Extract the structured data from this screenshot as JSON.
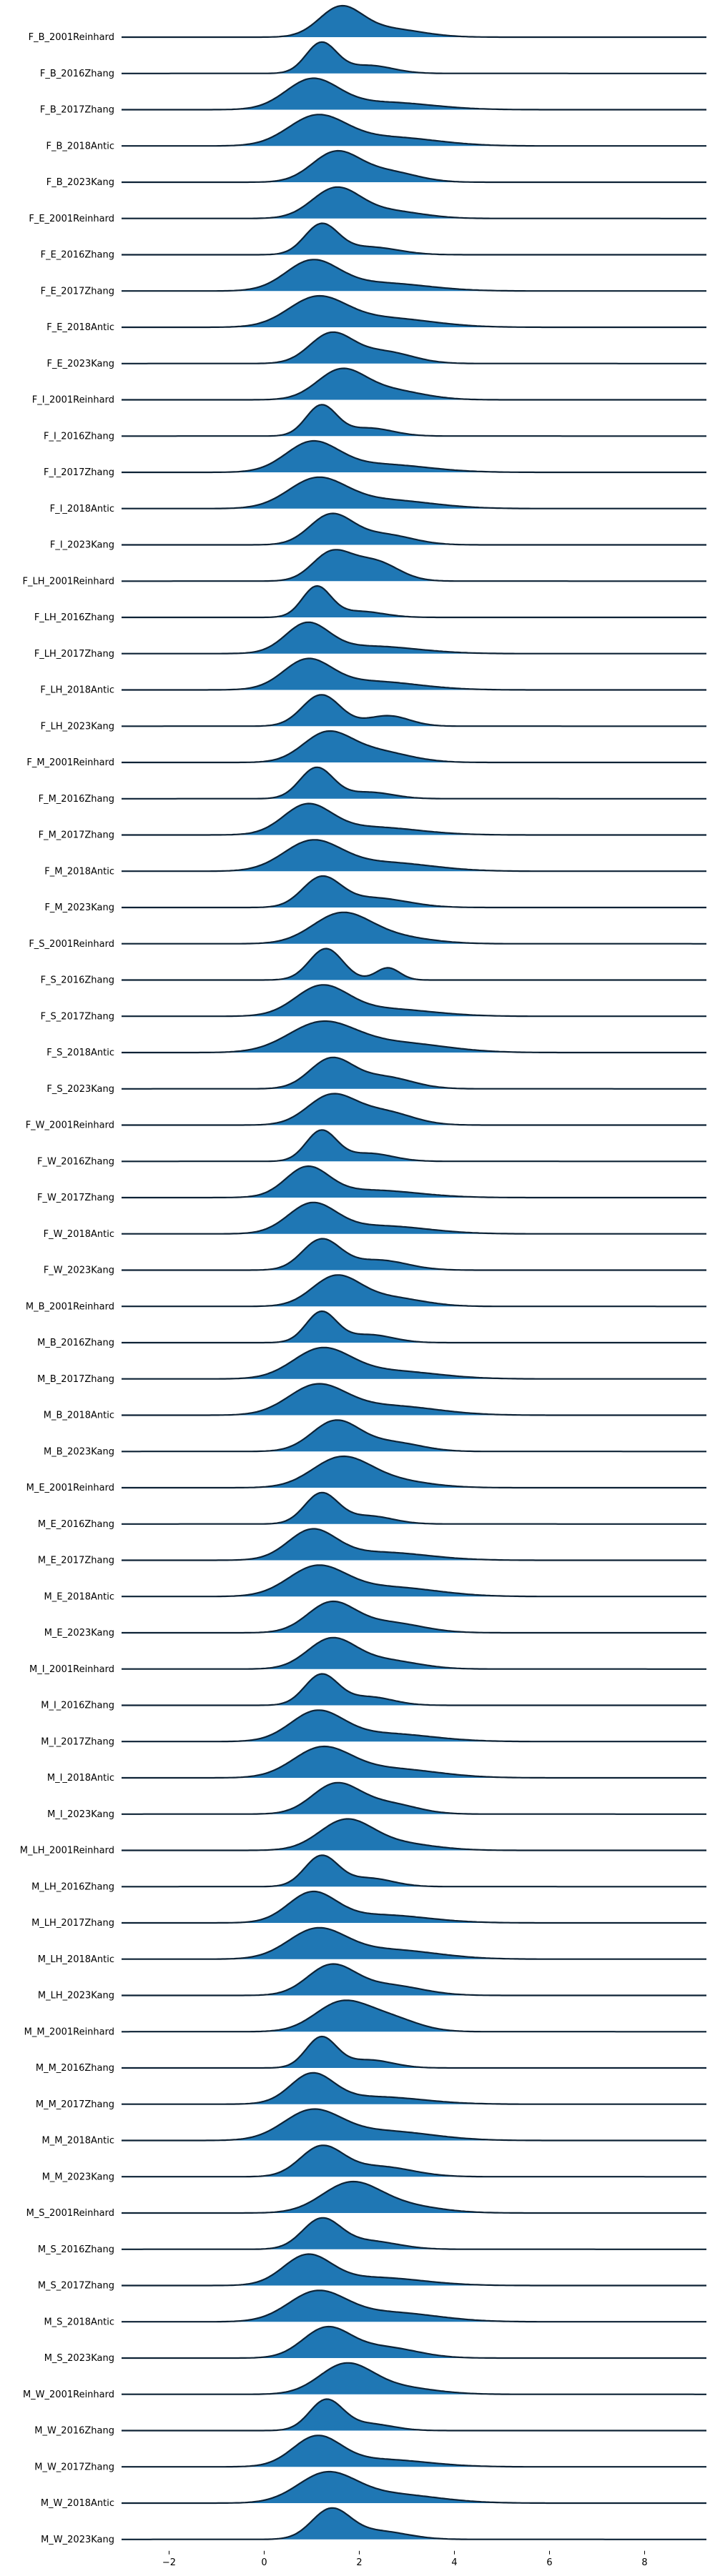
{
  "chart_data": {
    "type": "area",
    "subtype": "ridgeline",
    "title": "",
    "xlabel": "",
    "ylabel": "",
    "xlim": [
      -3.0,
      9.3
    ],
    "xticks": [
      -2,
      0,
      2,
      4,
      6,
      8
    ],
    "xtick_labels": [
      "−2",
      "0",
      "2",
      "4",
      "6",
      "8"
    ],
    "fill_color": "#1f77b4",
    "line_color": "#0d2235",
    "legend": "none",
    "grid": false,
    "series": [
      {
        "label": "F_B_2001Reinhard",
        "peaks": [
          [
            1.6,
            0.45,
            0.85
          ],
          [
            2.6,
            0.7,
            0.25
          ]
        ]
      },
      {
        "label": "F_B_2016Zhang",
        "peaks": [
          [
            1.2,
            0.32,
            0.95
          ],
          [
            2.2,
            0.5,
            0.25
          ]
        ]
      },
      {
        "label": "F_B_2017Zhang",
        "peaks": [
          [
            1.0,
            0.55,
            0.7
          ],
          [
            2.5,
            1.0,
            0.18
          ]
        ]
      },
      {
        "label": "F_B_2018Antic",
        "peaks": [
          [
            1.1,
            0.6,
            0.65
          ],
          [
            2.6,
            1.0,
            0.2
          ]
        ]
      },
      {
        "label": "F_B_2023Kang",
        "peaks": [
          [
            1.5,
            0.5,
            0.85
          ],
          [
            2.6,
            0.6,
            0.3
          ]
        ]
      },
      {
        "label": "F_E_2001Reinhard",
        "peaks": [
          [
            1.5,
            0.5,
            0.85
          ],
          [
            2.6,
            0.7,
            0.22
          ]
        ]
      },
      {
        "label": "F_E_2016Zhang",
        "peaks": [
          [
            1.2,
            0.35,
            0.95
          ],
          [
            2.2,
            0.6,
            0.25
          ]
        ]
      },
      {
        "label": "F_E_2017Zhang",
        "peaks": [
          [
            1.0,
            0.55,
            0.7
          ],
          [
            2.4,
            1.0,
            0.2
          ]
        ]
      },
      {
        "label": "F_E_2018Antic",
        "peaks": [
          [
            1.1,
            0.6,
            0.6
          ],
          [
            2.5,
            1.0,
            0.2
          ]
        ]
      },
      {
        "label": "F_E_2023Kang",
        "peaks": [
          [
            1.4,
            0.45,
            0.85
          ],
          [
            2.5,
            0.6,
            0.35
          ]
        ]
      },
      {
        "label": "F_I_2001Reinhard",
        "peaks": [
          [
            1.6,
            0.5,
            0.85
          ],
          [
            2.6,
            0.7,
            0.3
          ]
        ]
      },
      {
        "label": "F_I_2016Zhang",
        "peaks": [
          [
            1.2,
            0.32,
            0.95
          ],
          [
            2.2,
            0.5,
            0.25
          ]
        ]
      },
      {
        "label": "F_I_2017Zhang",
        "peaks": [
          [
            1.0,
            0.55,
            0.7
          ],
          [
            2.4,
            1.0,
            0.2
          ]
        ]
      },
      {
        "label": "F_I_2018Antic",
        "peaks": [
          [
            1.1,
            0.6,
            0.65
          ],
          [
            2.5,
            1.0,
            0.2
          ]
        ]
      },
      {
        "label": "F_I_2023Kang",
        "peaks": [
          [
            1.4,
            0.45,
            0.85
          ],
          [
            2.5,
            0.6,
            0.3
          ]
        ]
      },
      {
        "label": "F_LH_2001Reinhard",
        "peaks": [
          [
            1.4,
            0.4,
            0.8
          ],
          [
            2.3,
            0.5,
            0.6
          ]
        ]
      },
      {
        "label": "F_LH_2016Zhang",
        "peaks": [
          [
            1.1,
            0.3,
            1.0
          ],
          [
            2.0,
            0.5,
            0.2
          ]
        ]
      },
      {
        "label": "F_LH_2017Zhang",
        "peaks": [
          [
            0.9,
            0.45,
            0.75
          ],
          [
            2.2,
            1.0,
            0.2
          ]
        ]
      },
      {
        "label": "F_LH_2018Antic",
        "peaks": [
          [
            0.9,
            0.5,
            0.7
          ],
          [
            2.2,
            1.0,
            0.22
          ]
        ]
      },
      {
        "label": "F_LH_2023Kang",
        "peaks": [
          [
            1.2,
            0.4,
            0.9
          ],
          [
            2.6,
            0.45,
            0.3
          ]
        ]
      },
      {
        "label": "F_M_2001Reinhard",
        "peaks": [
          [
            1.3,
            0.5,
            0.7
          ],
          [
            2.3,
            0.7,
            0.3
          ]
        ]
      },
      {
        "label": "F_M_2016Zhang",
        "peaks": [
          [
            1.1,
            0.35,
            0.95
          ],
          [
            2.2,
            0.5,
            0.2
          ]
        ]
      },
      {
        "label": "F_M_2017Zhang",
        "peaks": [
          [
            0.9,
            0.5,
            0.7
          ],
          [
            2.2,
            1.0,
            0.2
          ]
        ]
      },
      {
        "label": "F_M_2018Antic",
        "peaks": [
          [
            1.0,
            0.6,
            0.65
          ],
          [
            2.5,
            1.0,
            0.2
          ]
        ]
      },
      {
        "label": "F_M_2023Kang",
        "peaks": [
          [
            1.2,
            0.4,
            0.9
          ],
          [
            2.3,
            0.7,
            0.3
          ]
        ]
      },
      {
        "label": "F_S_2001Reinhard",
        "peaks": [
          [
            1.6,
            0.6,
            0.75
          ],
          [
            2.6,
            0.8,
            0.2
          ]
        ]
      },
      {
        "label": "F_S_2016Zhang",
        "peaks": [
          [
            1.3,
            0.35,
            0.9
          ],
          [
            2.6,
            0.25,
            0.35
          ]
        ]
      },
      {
        "label": "F_S_2017Zhang",
        "peaks": [
          [
            1.2,
            0.55,
            0.75
          ],
          [
            2.5,
            1.0,
            0.2
          ]
        ]
      },
      {
        "label": "F_S_2018Antic",
        "peaks": [
          [
            1.2,
            0.7,
            0.6
          ],
          [
            2.8,
            1.0,
            0.2
          ]
        ]
      },
      {
        "label": "F_S_2023Kang",
        "peaks": [
          [
            1.4,
            0.45,
            0.85
          ],
          [
            2.5,
            0.6,
            0.35
          ]
        ]
      },
      {
        "label": "F_W_2001Reinhard",
        "peaks": [
          [
            1.4,
            0.5,
            0.75
          ],
          [
            2.5,
            0.6,
            0.35
          ]
        ]
      },
      {
        "label": "F_W_2016Zhang",
        "peaks": [
          [
            1.2,
            0.32,
            0.95
          ],
          [
            2.2,
            0.5,
            0.25
          ]
        ]
      },
      {
        "label": "F_W_2017Zhang",
        "peaks": [
          [
            0.9,
            0.45,
            0.75
          ],
          [
            2.2,
            1.0,
            0.2
          ]
        ]
      },
      {
        "label": "F_W_2018Antic",
        "peaks": [
          [
            1.0,
            0.5,
            0.7
          ],
          [
            2.4,
            1.0,
            0.2
          ]
        ]
      },
      {
        "label": "F_W_2023Kang",
        "peaks": [
          [
            1.2,
            0.4,
            0.9
          ],
          [
            2.4,
            0.6,
            0.3
          ]
        ]
      },
      {
        "label": "M_B_2001Reinhard",
        "peaks": [
          [
            1.5,
            0.5,
            0.8
          ],
          [
            2.6,
            0.7,
            0.25
          ]
        ]
      },
      {
        "label": "M_B_2016Zhang",
        "peaks": [
          [
            1.2,
            0.32,
            0.95
          ],
          [
            2.2,
            0.5,
            0.25
          ]
        ]
      },
      {
        "label": "M_B_2017Zhang",
        "peaks": [
          [
            1.2,
            0.6,
            0.7
          ],
          [
            2.6,
            1.0,
            0.2
          ]
        ]
      },
      {
        "label": "M_B_2018Antic",
        "peaks": [
          [
            1.1,
            0.6,
            0.6
          ],
          [
            2.6,
            1.0,
            0.2
          ]
        ]
      },
      {
        "label": "M_B_2023Kang",
        "peaks": [
          [
            1.5,
            0.5,
            0.85
          ],
          [
            2.7,
            0.6,
            0.25
          ]
        ]
      },
      {
        "label": "M_E_2001Reinhard",
        "peaks": [
          [
            1.6,
            0.6,
            0.75
          ],
          [
            2.6,
            0.8,
            0.2
          ]
        ]
      },
      {
        "label": "M_E_2016Zhang",
        "peaks": [
          [
            1.2,
            0.35,
            0.95
          ],
          [
            2.2,
            0.5,
            0.25
          ]
        ]
      },
      {
        "label": "M_E_2017Zhang",
        "peaks": [
          [
            1.0,
            0.5,
            0.7
          ],
          [
            2.4,
            1.0,
            0.2
          ]
        ]
      },
      {
        "label": "M_E_2018Antic",
        "peaks": [
          [
            1.1,
            0.6,
            0.6
          ],
          [
            2.6,
            1.0,
            0.2
          ]
        ]
      },
      {
        "label": "M_E_2023Kang",
        "peaks": [
          [
            1.4,
            0.5,
            0.85
          ],
          [
            2.6,
            0.7,
            0.3
          ]
        ]
      },
      {
        "label": "M_I_2001Reinhard",
        "peaks": [
          [
            1.4,
            0.5,
            0.8
          ],
          [
            2.5,
            0.7,
            0.25
          ]
        ]
      },
      {
        "label": "M_I_2016Zhang",
        "peaks": [
          [
            1.2,
            0.35,
            0.9
          ],
          [
            2.2,
            0.5,
            0.25
          ]
        ]
      },
      {
        "label": "M_I_2017Zhang",
        "peaks": [
          [
            1.1,
            0.55,
            0.7
          ],
          [
            2.5,
            1.0,
            0.2
          ]
        ]
      },
      {
        "label": "M_I_2018Antic",
        "peaks": [
          [
            1.2,
            0.6,
            0.6
          ],
          [
            2.6,
            1.0,
            0.2
          ]
        ]
      },
      {
        "label": "M_I_2023Kang",
        "peaks": [
          [
            1.5,
            0.5,
            0.85
          ],
          [
            2.6,
            0.6,
            0.3
          ]
        ]
      },
      {
        "label": "M_LH_2001Reinhard",
        "peaks": [
          [
            1.7,
            0.55,
            0.75
          ],
          [
            2.7,
            0.8,
            0.2
          ]
        ]
      },
      {
        "label": "M_LH_2016Zhang",
        "peaks": [
          [
            1.2,
            0.35,
            0.9
          ],
          [
            2.2,
            0.5,
            0.25
          ]
        ]
      },
      {
        "label": "M_LH_2017Zhang",
        "peaks": [
          [
            1.0,
            0.5,
            0.7
          ],
          [
            2.4,
            1.0,
            0.2
          ]
        ]
      },
      {
        "label": "M_LH_2018Antic",
        "peaks": [
          [
            1.1,
            0.6,
            0.6
          ],
          [
            2.6,
            1.0,
            0.2
          ]
        ]
      },
      {
        "label": "M_LH_2023Kang",
        "peaks": [
          [
            1.4,
            0.5,
            0.85
          ],
          [
            2.6,
            0.7,
            0.3
          ]
        ]
      },
      {
        "label": "M_M_2001Reinhard",
        "peaks": [
          [
            1.6,
            0.55,
            0.7
          ],
          [
            2.6,
            0.6,
            0.35
          ]
        ]
      },
      {
        "label": "M_M_2016Zhang",
        "peaks": [
          [
            1.2,
            0.32,
            0.95
          ],
          [
            2.2,
            0.5,
            0.25
          ]
        ]
      },
      {
        "label": "M_M_2017Zhang",
        "peaks": [
          [
            1.0,
            0.45,
            0.75
          ],
          [
            2.3,
            1.0,
            0.2
          ]
        ]
      },
      {
        "label": "M_M_2018Antic",
        "peaks": [
          [
            1.0,
            0.6,
            0.6
          ],
          [
            2.5,
            1.0,
            0.2
          ]
        ]
      },
      {
        "label": "M_M_2023Kang",
        "peaks": [
          [
            1.2,
            0.45,
            0.85
          ],
          [
            2.4,
            0.7,
            0.3
          ]
        ]
      },
      {
        "label": "M_S_2001Reinhard",
        "peaks": [
          [
            1.8,
            0.6,
            0.7
          ],
          [
            2.8,
            0.8,
            0.2
          ]
        ]
      },
      {
        "label": "M_S_2016Zhang",
        "peaks": [
          [
            1.2,
            0.4,
            0.9
          ],
          [
            2.2,
            0.6,
            0.25
          ]
        ]
      },
      {
        "label": "M_S_2017Zhang",
        "peaks": [
          [
            0.9,
            0.5,
            0.7
          ],
          [
            2.3,
            1.0,
            0.2
          ]
        ]
      },
      {
        "label": "M_S_2018Antic",
        "peaks": [
          [
            1.1,
            0.6,
            0.6
          ],
          [
            2.6,
            1.0,
            0.2
          ]
        ]
      },
      {
        "label": "M_S_2023Kang",
        "peaks": [
          [
            1.3,
            0.5,
            0.8
          ],
          [
            2.5,
            0.7,
            0.3
          ]
        ]
      },
      {
        "label": "M_W_2001Reinhard",
        "peaks": [
          [
            1.7,
            0.55,
            0.75
          ],
          [
            2.7,
            0.8,
            0.2
          ]
        ]
      },
      {
        "label": "M_W_2016Zhang",
        "peaks": [
          [
            1.3,
            0.35,
            0.9
          ],
          [
            2.2,
            0.5,
            0.2
          ]
        ]
      },
      {
        "label": "M_W_2017Zhang",
        "peaks": [
          [
            1.1,
            0.5,
            0.75
          ],
          [
            2.4,
            1.0,
            0.2
          ]
        ]
      },
      {
        "label": "M_W_2018Antic",
        "peaks": [
          [
            1.3,
            0.6,
            0.6
          ],
          [
            2.6,
            1.0,
            0.2
          ]
        ]
      },
      {
        "label": "M_W_2023Kang",
        "peaks": [
          [
            1.4,
            0.4,
            0.9
          ],
          [
            2.4,
            0.6,
            0.25
          ]
        ]
      }
    ]
  }
}
